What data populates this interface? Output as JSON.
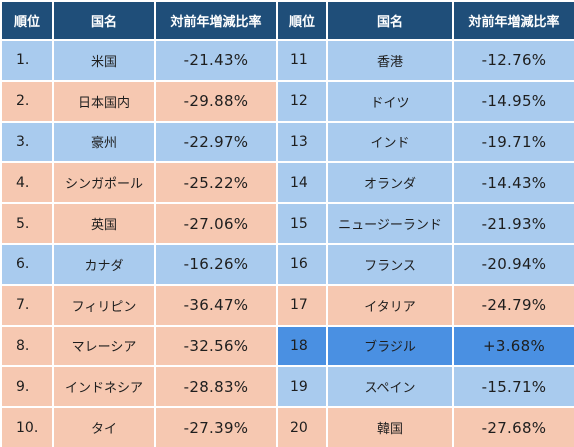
{
  "header": {
    "rank": "順位",
    "country": "国名",
    "rate": "対前年増減比率"
  },
  "left_rows": [
    {
      "rank": "1.",
      "country": "米国",
      "rate": "-21.43%",
      "color": "blue"
    },
    {
      "rank": "2.",
      "country": "日本国内",
      "rate": "-29.88%",
      "color": "salmon"
    },
    {
      "rank": "3.",
      "country": "豪州",
      "rate": "-22.97%",
      "color": "blue"
    },
    {
      "rank": "4.",
      "country": "シンガポール",
      "rate": "-25.22%",
      "color": "salmon"
    },
    {
      "rank": "5.",
      "country": "英国",
      "rate": "-27.06%",
      "color": "salmon"
    },
    {
      "rank": "6.",
      "country": "カナダ",
      "rate": "-16.26%",
      "color": "blue"
    },
    {
      "rank": "7.",
      "country": "フィリピン",
      "rate": "-36.47%",
      "color": "salmon"
    },
    {
      "rank": "8.",
      "country": "マレーシア",
      "rate": "-32.56%",
      "color": "salmon"
    },
    {
      "rank": "9.",
      "country": "インドネシア",
      "rate": "-28.83%",
      "color": "salmon"
    },
    {
      "rank": "10.",
      "country": "タイ",
      "rate": "-27.39%",
      "color": "salmon"
    }
  ],
  "right_rows": [
    {
      "rank": "11",
      "country": "香港",
      "rate": "-12.76%",
      "color": "blue"
    },
    {
      "rank": "12",
      "country": "ドイツ",
      "rate": "-14.95%",
      "color": "blue"
    },
    {
      "rank": "13",
      "country": "インド",
      "rate": "-19.71%",
      "color": "blue"
    },
    {
      "rank": "14",
      "country": "オランダ",
      "rate": "-14.43%",
      "color": "blue"
    },
    {
      "rank": "15",
      "country": "ニュージーランド",
      "rate": "-21.93%",
      "color": "blue"
    },
    {
      "rank": "16",
      "country": "フランス",
      "rate": "-20.94%",
      "color": "blue"
    },
    {
      "rank": "17",
      "country": "イタリア",
      "rate": "-24.79%",
      "color": "salmon"
    },
    {
      "rank": "18",
      "country": "ブラジル",
      "rate": "+3.68%",
      "color": "highlight"
    },
    {
      "rank": "19",
      "country": "スペイン",
      "rate": "-15.71%",
      "color": "blue"
    },
    {
      "rank": "20",
      "country": "韓国",
      "rate": "-27.68%",
      "color": "salmon"
    }
  ],
  "colors": {
    "header": "#1f4e79",
    "blue": "#a9cbee",
    "salmon": "#f6c8b1",
    "highlight": "#4a90e2"
  }
}
